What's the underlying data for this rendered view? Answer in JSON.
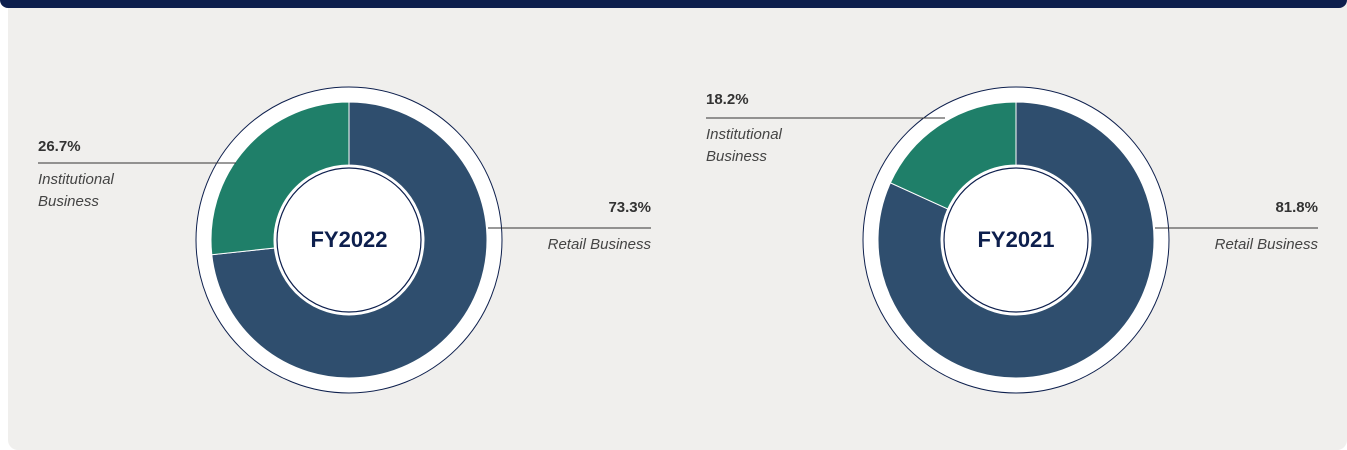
{
  "chart_data": [
    {
      "type": "pie",
      "title": "FY2022",
      "categories": [
        "Retail Business",
        "Institutional Business"
      ],
      "values": [
        73.3,
        26.7
      ],
      "value_labels": [
        "73.3%",
        "26.7%"
      ],
      "colors": [
        "#2f4e6e",
        "#1f7f69"
      ]
    },
    {
      "type": "pie",
      "title": "FY2021",
      "categories": [
        "Retail Business",
        "Institutional Business"
      ],
      "values": [
        81.8,
        18.2
      ],
      "value_labels": [
        "81.8%",
        "18.2%"
      ],
      "colors": [
        "#2f4e6e",
        "#1f7f69"
      ]
    }
  ]
}
